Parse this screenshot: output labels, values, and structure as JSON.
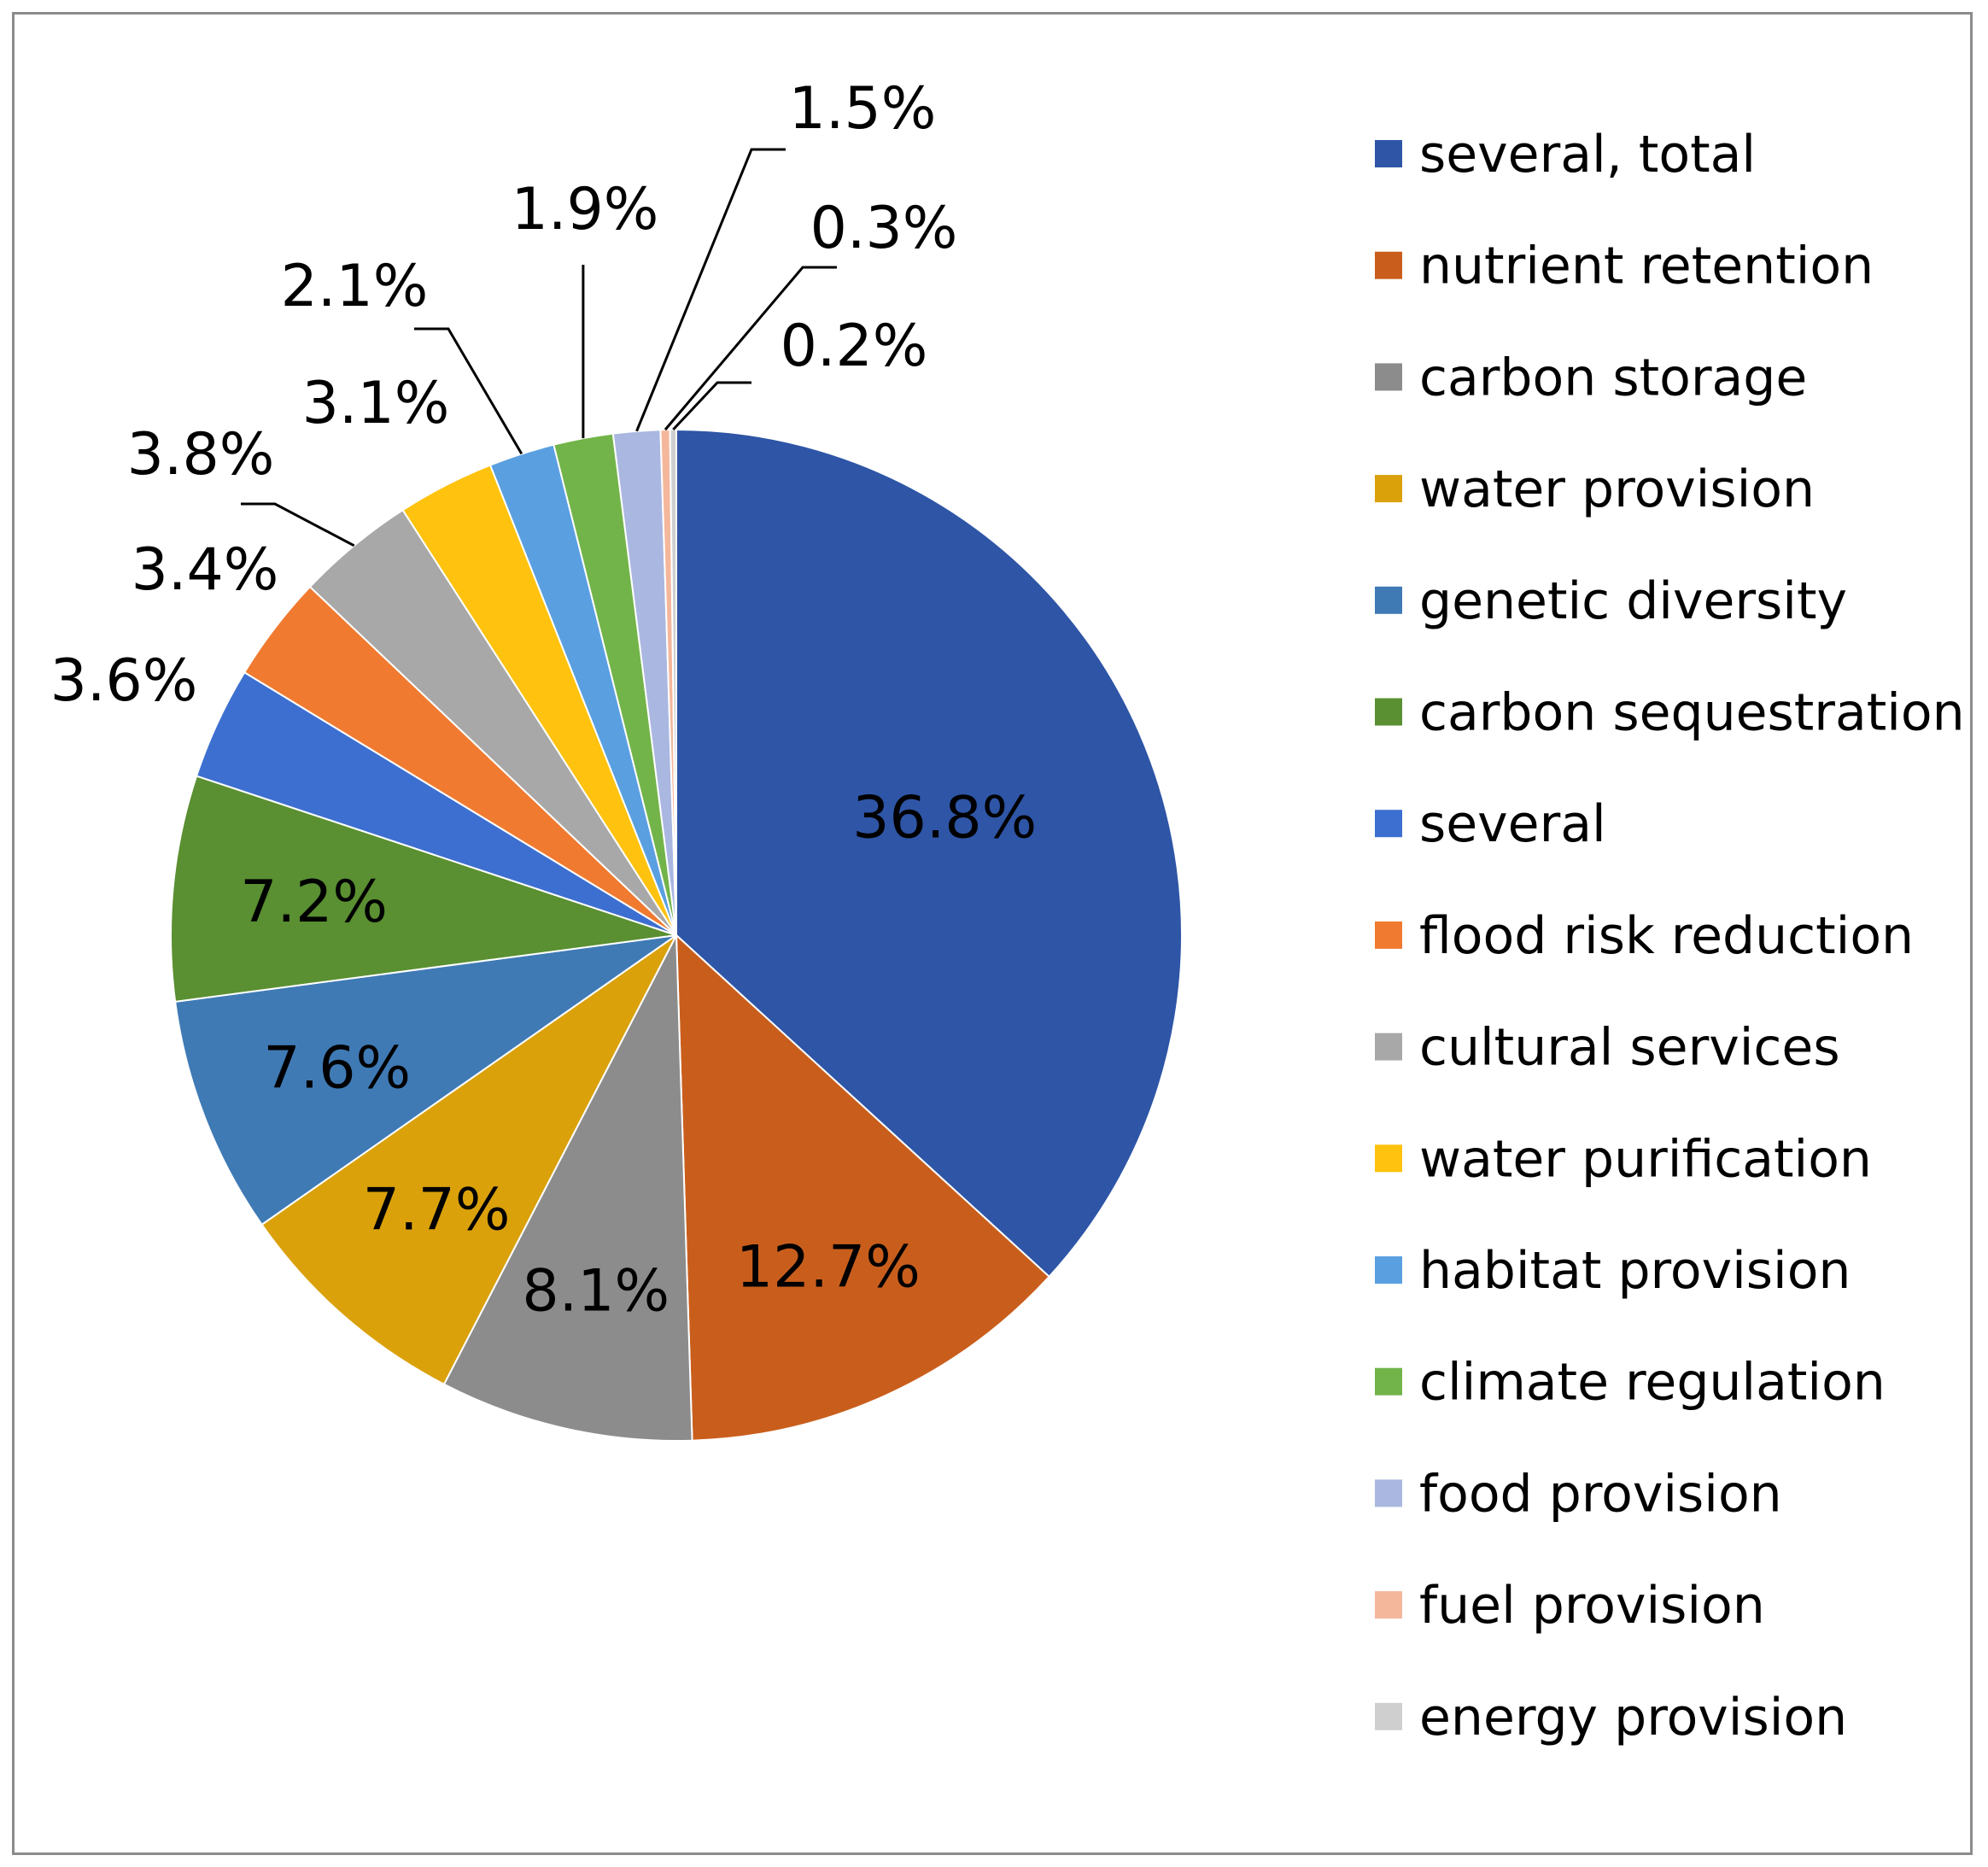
{
  "chart_data": {
    "type": "pie",
    "title": "",
    "legend_position": "right",
    "labels_outside_threshold": 4.0,
    "slices": [
      {
        "name": "several, total",
        "value": 36.8,
        "label": "36.8%",
        "color": "#2e55a6"
      },
      {
        "name": "nutrient retention",
        "value": 12.7,
        "label": "12.7%",
        "color": "#c95e1c"
      },
      {
        "name": "carbon storage",
        "value": 8.1,
        "label": "8.1%",
        "color": "#8c8c8c"
      },
      {
        "name": "water provision",
        "value": 7.7,
        "label": "7.7%",
        "color": "#daa10b"
      },
      {
        "name": "genetic diversity",
        "value": 7.6,
        "label": "7.6%",
        "color": "#3f7ab5"
      },
      {
        "name": "carbon sequestration",
        "value": 7.2,
        "label": "7.2%",
        "color": "#5a8f32"
      },
      {
        "name": "several",
        "value": 3.6,
        "label": "3.6%",
        "color": "#3d6fd1"
      },
      {
        "name": "flood risk reduction",
        "value": 3.4,
        "label": "3.4%",
        "color": "#f07a30"
      },
      {
        "name": "cultural services",
        "value": 3.8,
        "label": "3.8%",
        "color": "#a8a8a8"
      },
      {
        "name": "water purification",
        "value": 3.1,
        "label": "3.1%",
        "color": "#ffc20e"
      },
      {
        "name": "habitat provision",
        "value": 2.1,
        "label": "2.1%",
        "color": "#5a9fe0"
      },
      {
        "name": "climate regulation",
        "value": 1.9,
        "label": "1.9%",
        "color": "#72b449"
      },
      {
        "name": "food provision",
        "value": 1.5,
        "label": "1.5%",
        "color": "#aab7e0"
      },
      {
        "name": "fuel provision",
        "value": 0.3,
        "label": "0.3%",
        "color": "#f4b79c"
      },
      {
        "name": "energy provision",
        "value": 0.2,
        "label": "0.2%",
        "color": "#cfcfcf"
      }
    ]
  }
}
